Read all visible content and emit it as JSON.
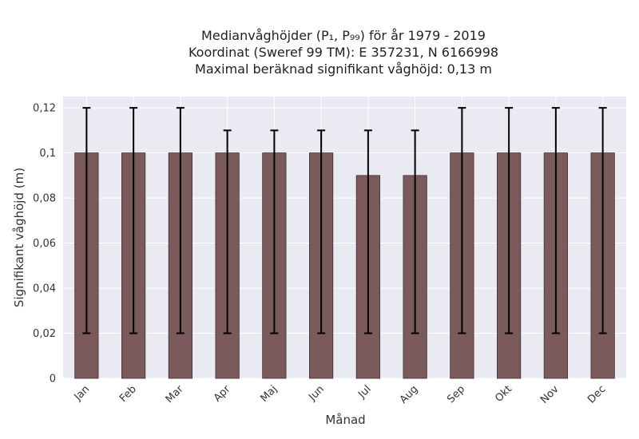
{
  "chart_data": {
    "type": "bar",
    "title_lines": [
      "Medianvåghöjder (P₁, P₉₉) för år 1979 - 2019",
      "Koordinat (Sweref 99 TM): E 357231, N 6166998",
      "Maximal beräknad signifikant våghöjd: 0,13 m"
    ],
    "xlabel": "Månad",
    "ylabel": "Signifikant våghöjd (m)",
    "categories": [
      "Jan",
      "Feb",
      "Mar",
      "Apr",
      "Maj",
      "Jun",
      "Jul",
      "Aug",
      "Sep",
      "Okt",
      "Nov",
      "Dec"
    ],
    "values": [
      0.1,
      0.1,
      0.1,
      0.1,
      0.1,
      0.1,
      0.09,
      0.09,
      0.1,
      0.1,
      0.1,
      0.1
    ],
    "error_low": [
      0.02,
      0.02,
      0.02,
      0.02,
      0.02,
      0.02,
      0.02,
      0.02,
      0.02,
      0.02,
      0.02,
      0.02
    ],
    "error_high": [
      0.12,
      0.12,
      0.12,
      0.11,
      0.11,
      0.11,
      0.11,
      0.11,
      0.12,
      0.12,
      0.12,
      0.12
    ],
    "ylim": [
      0,
      0.125
    ],
    "yticks": [
      0,
      0.02,
      0.04,
      0.06,
      0.08,
      0.1,
      0.12
    ],
    "ytick_labels": [
      "0",
      "0,02",
      "0,04",
      "0,06",
      "0,08",
      "0,1",
      "0,12"
    ],
    "grid": true,
    "colors": {
      "bar": "#7a5a5a",
      "bar_edge": "#3d2e2e",
      "errorbar": "#000000",
      "plot_bg": "#eaeaf2",
      "grid": "#ffffff"
    }
  }
}
